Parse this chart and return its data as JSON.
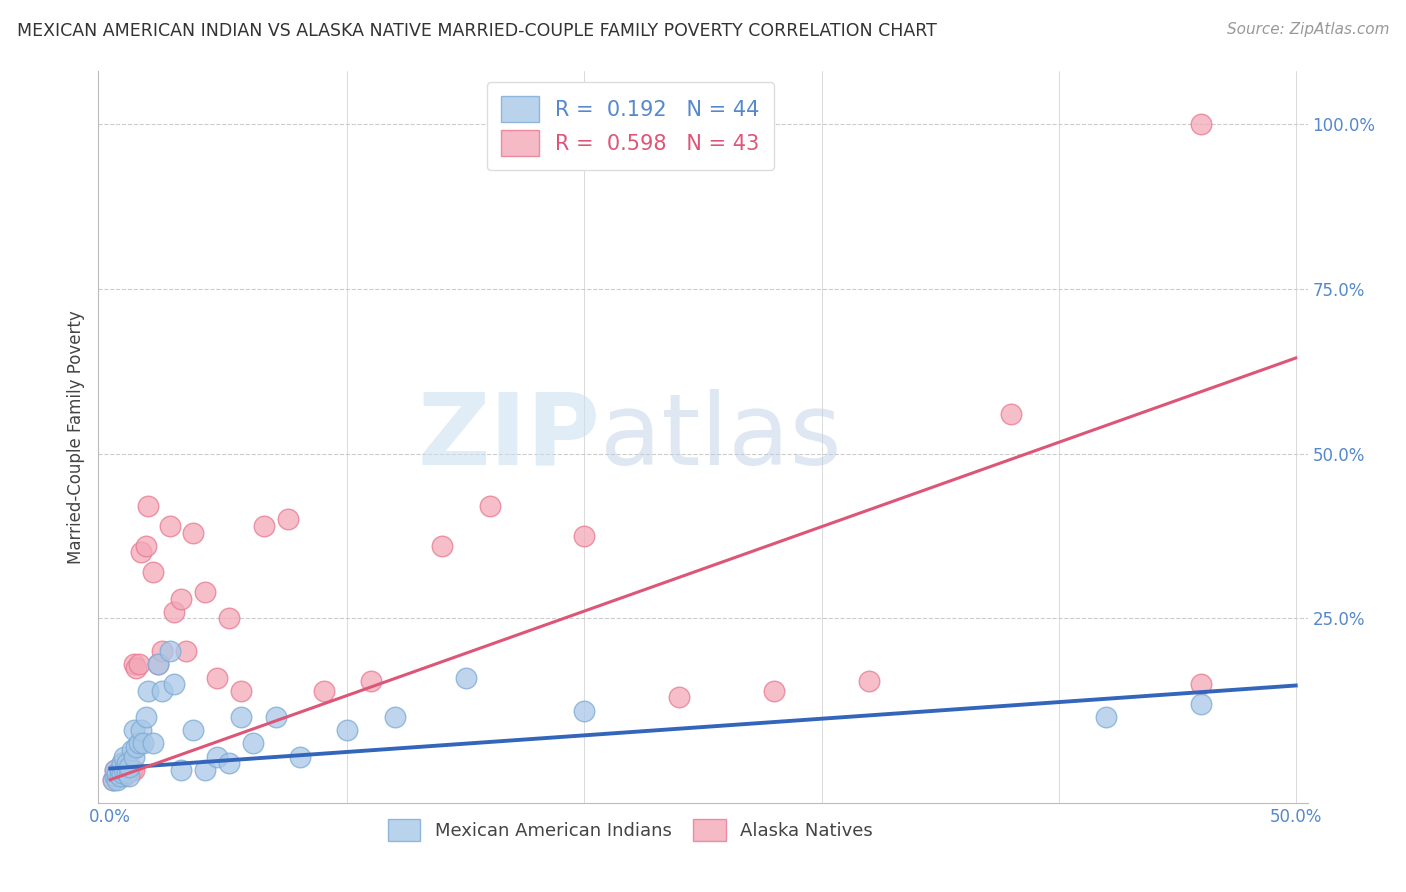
{
  "title": "MEXICAN AMERICAN INDIAN VS ALASKA NATIVE MARRIED-COUPLE FAMILY POVERTY CORRELATION CHART",
  "source": "Source: ZipAtlas.com",
  "ylabel": "Married-Couple Family Poverty",
  "xlim": [
    -0.005,
    0.505
  ],
  "ylim": [
    -0.03,
    1.08
  ],
  "legend_label1": "Mexican American Indians",
  "legend_label2": "Alaska Natives",
  "blue_color": "#a8c8e8",
  "blue_edge_color": "#7baad4",
  "pink_color": "#f4a8b8",
  "pink_edge_color": "#e87890",
  "blue_line_color": "#3366bb",
  "pink_line_color": "#dd5577",
  "watermark_zip": "ZIP",
  "watermark_atlas": "atlas",
  "blue_R": 0.192,
  "blue_N": 44,
  "pink_R": 0.598,
  "pink_N": 43,
  "blue_line_x0": 0.0,
  "blue_line_y0": 0.022,
  "blue_line_x1": 0.5,
  "blue_line_y1": 0.148,
  "pink_line_x0": 0.0,
  "pink_line_y0": 0.005,
  "pink_line_x1": 0.5,
  "pink_line_y1": 0.645,
  "blue_scatter_x": [
    0.001,
    0.002,
    0.002,
    0.003,
    0.003,
    0.004,
    0.004,
    0.005,
    0.005,
    0.006,
    0.006,
    0.007,
    0.007,
    0.008,
    0.008,
    0.009,
    0.01,
    0.01,
    0.011,
    0.012,
    0.013,
    0.014,
    0.015,
    0.016,
    0.018,
    0.02,
    0.022,
    0.025,
    0.027,
    0.03,
    0.035,
    0.04,
    0.045,
    0.05,
    0.055,
    0.06,
    0.07,
    0.08,
    0.1,
    0.12,
    0.15,
    0.2,
    0.42,
    0.46
  ],
  "blue_scatter_y": [
    0.005,
    0.01,
    0.02,
    0.005,
    0.015,
    0.01,
    0.02,
    0.015,
    0.03,
    0.02,
    0.04,
    0.015,
    0.03,
    0.01,
    0.025,
    0.05,
    0.04,
    0.08,
    0.055,
    0.06,
    0.08,
    0.06,
    0.1,
    0.14,
    0.06,
    0.18,
    0.14,
    0.2,
    0.15,
    0.02,
    0.08,
    0.02,
    0.04,
    0.03,
    0.1,
    0.06,
    0.1,
    0.04,
    0.08,
    0.1,
    0.16,
    0.11,
    0.1,
    0.12
  ],
  "pink_scatter_x": [
    0.001,
    0.002,
    0.002,
    0.003,
    0.004,
    0.005,
    0.005,
    0.006,
    0.007,
    0.008,
    0.009,
    0.01,
    0.01,
    0.011,
    0.012,
    0.013,
    0.015,
    0.016,
    0.018,
    0.02,
    0.022,
    0.025,
    0.027,
    0.03,
    0.032,
    0.035,
    0.04,
    0.045,
    0.05,
    0.055,
    0.065,
    0.075,
    0.09,
    0.11,
    0.14,
    0.16,
    0.2,
    0.24,
    0.28,
    0.32,
    0.38,
    0.46,
    0.46
  ],
  "pink_scatter_y": [
    0.005,
    0.01,
    0.02,
    0.01,
    0.02,
    0.01,
    0.03,
    0.01,
    0.02,
    0.02,
    0.02,
    0.02,
    0.18,
    0.175,
    0.18,
    0.35,
    0.36,
    0.42,
    0.32,
    0.18,
    0.2,
    0.39,
    0.26,
    0.28,
    0.2,
    0.38,
    0.29,
    0.16,
    0.25,
    0.14,
    0.39,
    0.4,
    0.14,
    0.155,
    0.36,
    0.42,
    0.375,
    0.13,
    0.14,
    0.155,
    0.56,
    0.15,
    1.0
  ],
  "axis_text_color": "#5588cc",
  "tick_label_fontsize": 12,
  "title_fontsize": 12.5,
  "source_fontsize": 11,
  "ylabel_fontsize": 12
}
